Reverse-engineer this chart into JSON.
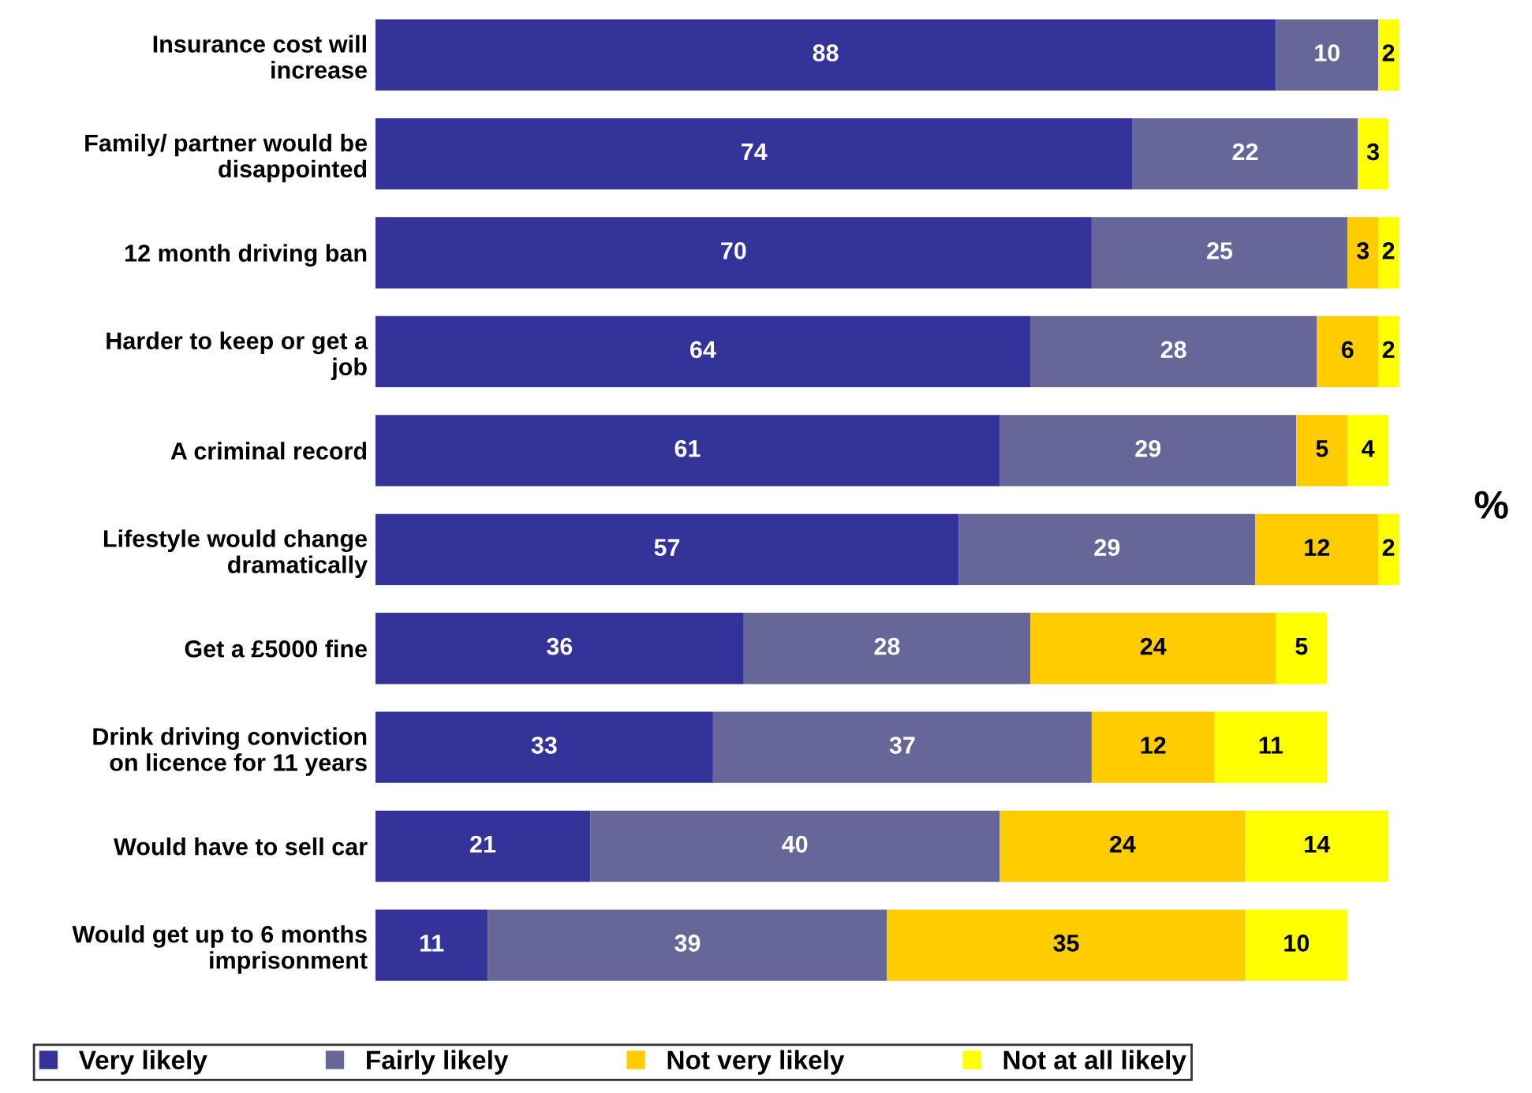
{
  "chart_data": {
    "type": "bar",
    "orientation": "horizontal",
    "stacked": true,
    "data_labels": true,
    "legend": "bottom",
    "grid": false,
    "categories": [
      "Insurance cost will\nincrease",
      "Family/ partner would be\ndisappointed",
      "12 month driving ban",
      "Harder to keep or get a\njob",
      "A criminal record",
      "Lifestyle would change\ndramatically",
      "Get a £5000 fine",
      "Drink driving conviction\non licence for 11 years",
      "Would have to sell car",
      "Would get up to 6 months\nimprisonment"
    ],
    "series": [
      {
        "name": "Very likely",
        "color": "#333399",
        "values": [
          88,
          74,
          70,
          64,
          61,
          57,
          36,
          33,
          21,
          11
        ]
      },
      {
        "name": "Fairly likely",
        "color": "#666699",
        "values": [
          10,
          22,
          25,
          28,
          29,
          29,
          28,
          37,
          40,
          39
        ]
      },
      {
        "name": "Not very likely",
        "color": "#ffcc00",
        "values": [
          null,
          null,
          3,
          6,
          5,
          12,
          24,
          12,
          24,
          35
        ]
      },
      {
        "name": "Not at all likely",
        "color": "#ffff00",
        "values": [
          2,
          3,
          2,
          2,
          4,
          2,
          5,
          11,
          14,
          10
        ]
      }
    ],
    "annotations": [
      "%"
    ]
  }
}
